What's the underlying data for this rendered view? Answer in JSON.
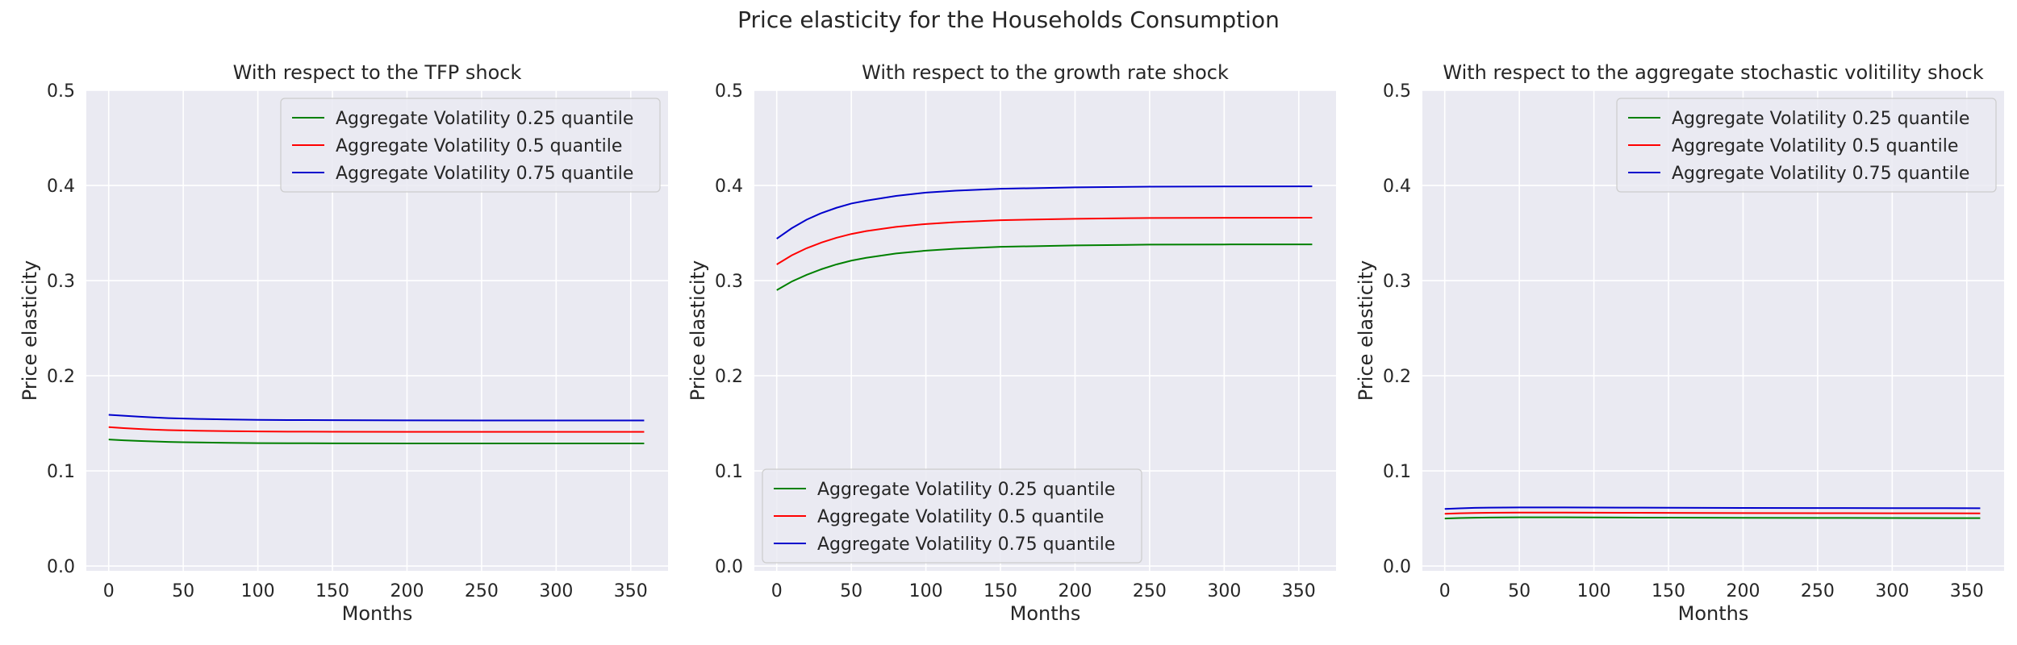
{
  "figure_title": "Price elasticity for the Households Consumption",
  "chart_data": [
    {
      "type": "line",
      "title": "With respect to the TFP shock",
      "xlabel": "Months",
      "ylabel": "Price elasticity",
      "xlim": [
        -15,
        375
      ],
      "ylim": [
        -0.005,
        0.5
      ],
      "xticks": [
        0,
        50,
        100,
        150,
        200,
        250,
        300,
        350
      ],
      "yticks": [
        0.0,
        0.1,
        0.2,
        0.3,
        0.4,
        0.5
      ],
      "ytick_labels": [
        "0.0",
        "0.1",
        "0.2",
        "0.3",
        "0.4",
        "0.5"
      ],
      "grid": true,
      "legend_position": "top-right",
      "x": [
        0,
        10,
        20,
        30,
        40,
        50,
        60,
        80,
        100,
        120,
        150,
        200,
        250,
        300,
        359
      ],
      "series": [
        {
          "name": "Aggregate Volatility 0.25 quantile",
          "color": "#008000",
          "values": [
            0.133,
            0.1322,
            0.1315,
            0.131,
            0.1305,
            0.1302,
            0.1299,
            0.1295,
            0.1292,
            0.1291,
            0.129,
            0.1289,
            0.1289,
            0.1289,
            0.1289
          ]
        },
        {
          "name": "Aggregate Volatility 0.5 quantile",
          "color": "#ff0000",
          "values": [
            0.146,
            0.145,
            0.1441,
            0.1434,
            0.1429,
            0.1425,
            0.1422,
            0.1418,
            0.1415,
            0.1413,
            0.1412,
            0.1411,
            0.1411,
            0.1411,
            0.1411
          ]
        },
        {
          "name": "Aggregate Volatility 0.75 quantile",
          "color": "#0000cc",
          "values": [
            0.159,
            0.158,
            0.157,
            0.1562,
            0.1555,
            0.155,
            0.1546,
            0.1541,
            0.1537,
            0.1535,
            0.1533,
            0.1531,
            0.153,
            0.153,
            0.153
          ]
        }
      ]
    },
    {
      "type": "line",
      "title": "With respect to the growth rate shock",
      "xlabel": "Months",
      "ylabel": "Price elasticity",
      "xlim": [
        -15,
        375
      ],
      "ylim": [
        -0.005,
        0.5
      ],
      "xticks": [
        0,
        50,
        100,
        150,
        200,
        250,
        300,
        350
      ],
      "yticks": [
        0.0,
        0.1,
        0.2,
        0.3,
        0.4,
        0.5
      ],
      "ytick_labels": [
        "0.0",
        "0.1",
        "0.2",
        "0.3",
        "0.4",
        "0.5"
      ],
      "grid": true,
      "legend_position": "bottom-left",
      "x": [
        0,
        10,
        20,
        30,
        40,
        50,
        60,
        80,
        100,
        120,
        150,
        200,
        250,
        300,
        359
      ],
      "series": [
        {
          "name": "Aggregate Volatility 0.25 quantile",
          "color": "#008000",
          "values": [
            0.29,
            0.299,
            0.306,
            0.312,
            0.317,
            0.321,
            0.324,
            0.3285,
            0.3315,
            0.3335,
            0.3355,
            0.337,
            0.3378,
            0.338,
            0.3381
          ]
        },
        {
          "name": "Aggregate Volatility 0.5 quantile",
          "color": "#ff0000",
          "values": [
            0.317,
            0.3265,
            0.334,
            0.34,
            0.345,
            0.349,
            0.352,
            0.3565,
            0.3595,
            0.3615,
            0.3635,
            0.365,
            0.3658,
            0.366,
            0.3661
          ]
        },
        {
          "name": "Aggregate Volatility 0.75 quantile",
          "color": "#0000cc",
          "values": [
            0.344,
            0.355,
            0.364,
            0.371,
            0.3765,
            0.381,
            0.384,
            0.389,
            0.3925,
            0.3945,
            0.3965,
            0.398,
            0.3988,
            0.399,
            0.3991
          ]
        }
      ]
    },
    {
      "type": "line",
      "title": "With respect to the aggregate stochastic volitility shock",
      "xlabel": "Months",
      "ylabel": "Price elasticity",
      "xlim": [
        -15,
        375
      ],
      "ylim": [
        -0.005,
        0.5
      ],
      "xticks": [
        0,
        50,
        100,
        150,
        200,
        250,
        300,
        350
      ],
      "yticks": [
        0.0,
        0.1,
        0.2,
        0.3,
        0.4,
        0.5
      ],
      "ytick_labels": [
        "0.0",
        "0.1",
        "0.2",
        "0.3",
        "0.4",
        "0.5"
      ],
      "grid": true,
      "legend_position": "top-right",
      "x": [
        0,
        10,
        20,
        30,
        40,
        50,
        60,
        80,
        100,
        120,
        150,
        200,
        250,
        300,
        359
      ],
      "series": [
        {
          "name": "Aggregate Volatility 0.25 quantile",
          "color": "#008000",
          "values": [
            0.05,
            0.0505,
            0.0508,
            0.051,
            0.0511,
            0.0512,
            0.0512,
            0.0512,
            0.0511,
            0.051,
            0.0509,
            0.0507,
            0.0506,
            0.0505,
            0.0504
          ]
        },
        {
          "name": "Aggregate Volatility 0.5 quantile",
          "color": "#ff0000",
          "values": [
            0.055,
            0.0555,
            0.0558,
            0.056,
            0.0561,
            0.0562,
            0.0562,
            0.0562,
            0.0561,
            0.056,
            0.0559,
            0.0557,
            0.0556,
            0.0555,
            0.0554
          ]
        },
        {
          "name": "Aggregate Volatility 0.75 quantile",
          "color": "#0000cc",
          "values": [
            0.06,
            0.0607,
            0.0612,
            0.0614,
            0.0615,
            0.0616,
            0.0616,
            0.0616,
            0.0615,
            0.0614,
            0.0613,
            0.0611,
            0.061,
            0.0609,
            0.0608
          ]
        }
      ]
    }
  ]
}
